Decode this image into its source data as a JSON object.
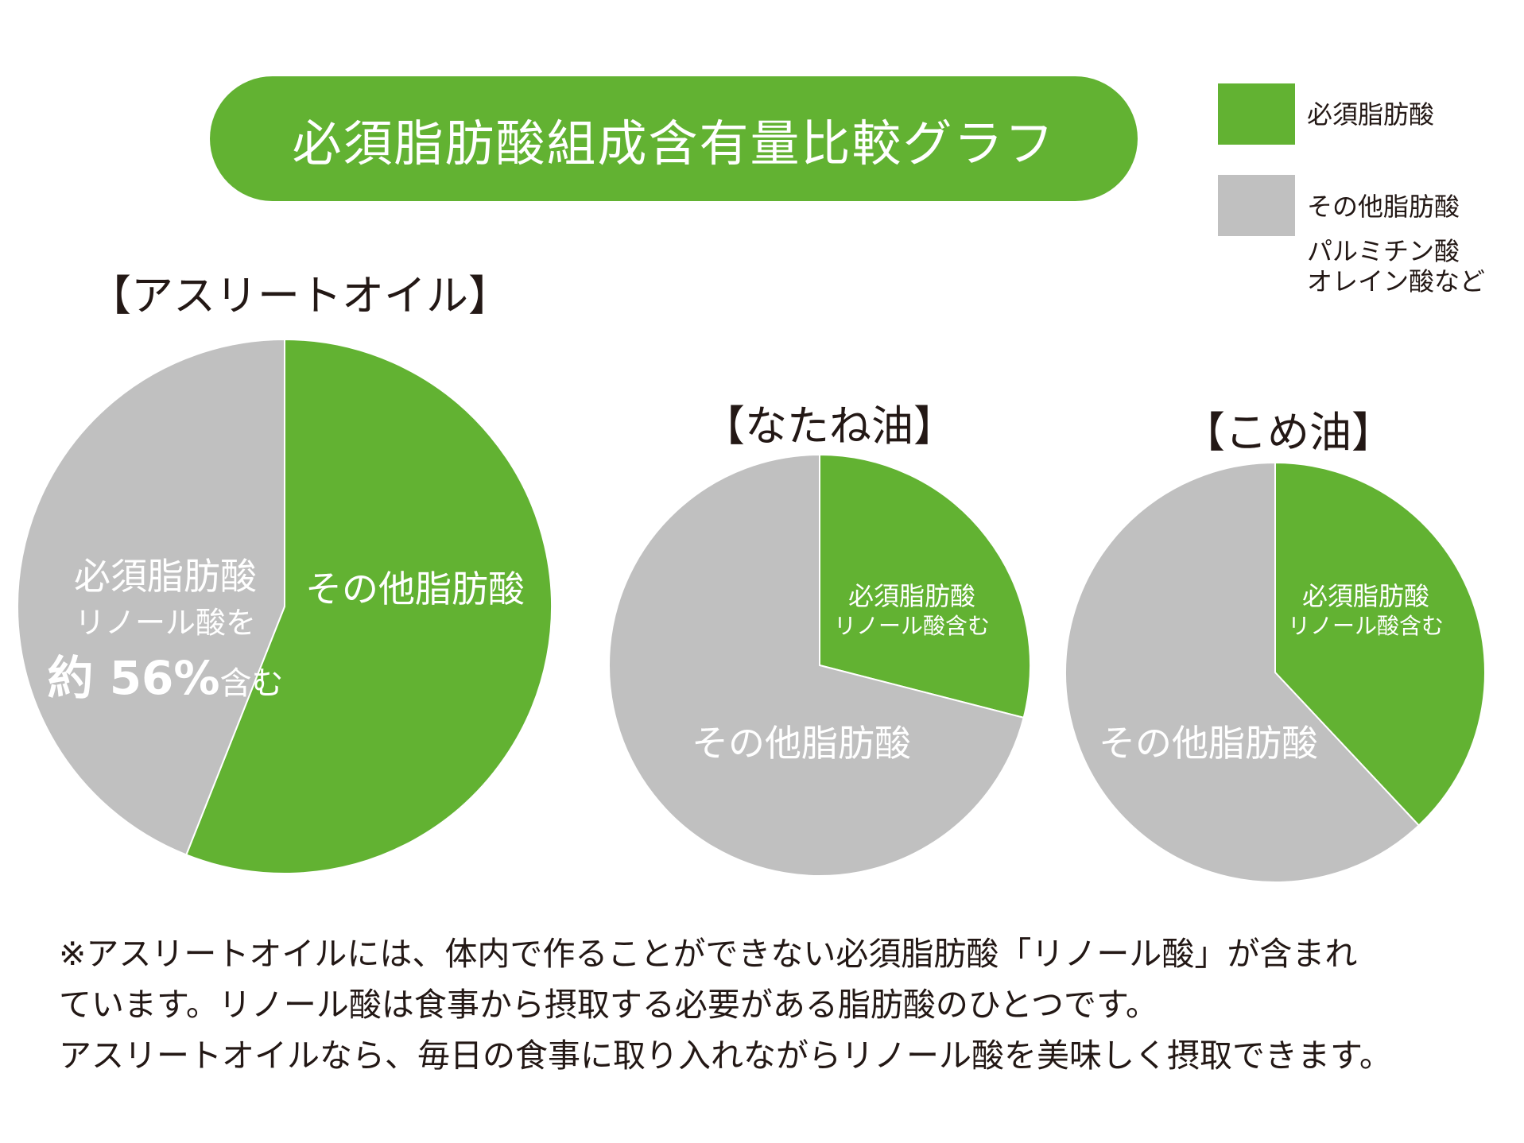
{
  "colors": {
    "essential": "#62b232",
    "other": "#c0c0c0",
    "text": "#231815",
    "label": "#ffffff"
  },
  "title": "必須脂肪酸組成含有量比較グラフ",
  "legend": {
    "items": [
      {
        "label": "必須脂肪酸"
      },
      {
        "label": "その他脂肪酸",
        "note_lines": [
          "パルミチン酸",
          "オレイン酸など"
        ]
      }
    ]
  },
  "chart_data": [
    {
      "type": "pie",
      "title": "【アスリートオイル】",
      "slices": [
        {
          "label": "必須脂肪酸",
          "value": 56,
          "color": "#62b232",
          "sublabel": "リノール酸を",
          "callout_prefix": "約 ",
          "callout_value": "56%",
          "callout_suffix": "含む"
        },
        {
          "label": "その他脂肪酸",
          "value": 44,
          "color": "#c0c0c0"
        }
      ]
    },
    {
      "type": "pie",
      "title": "【なたね油】",
      "slices": [
        {
          "label": "必須脂肪酸",
          "value": 29,
          "color": "#62b232",
          "sublabel": "リノール酸含む"
        },
        {
          "label": "その他脂肪酸",
          "value": 71,
          "color": "#c0c0c0"
        }
      ]
    },
    {
      "type": "pie",
      "title": "【こめ油】",
      "slices": [
        {
          "label": "必須脂肪酸",
          "value": 38,
          "color": "#62b232",
          "sublabel": "リノール酸含む"
        },
        {
          "label": "その他脂肪酸",
          "value": 62,
          "color": "#c0c0c0"
        }
      ]
    }
  ],
  "footnote": {
    "lines": [
      "※アスリートオイルには、体内で作ることができない必須脂肪酸「リノール酸」が含まれ",
      "ています。リノール酸は食事から摂取する必要がある脂肪酸のひとつです。",
      "アスリートオイルなら、毎日の食事に取り入れながらリノール酸を美味しく摂取できます。"
    ]
  }
}
